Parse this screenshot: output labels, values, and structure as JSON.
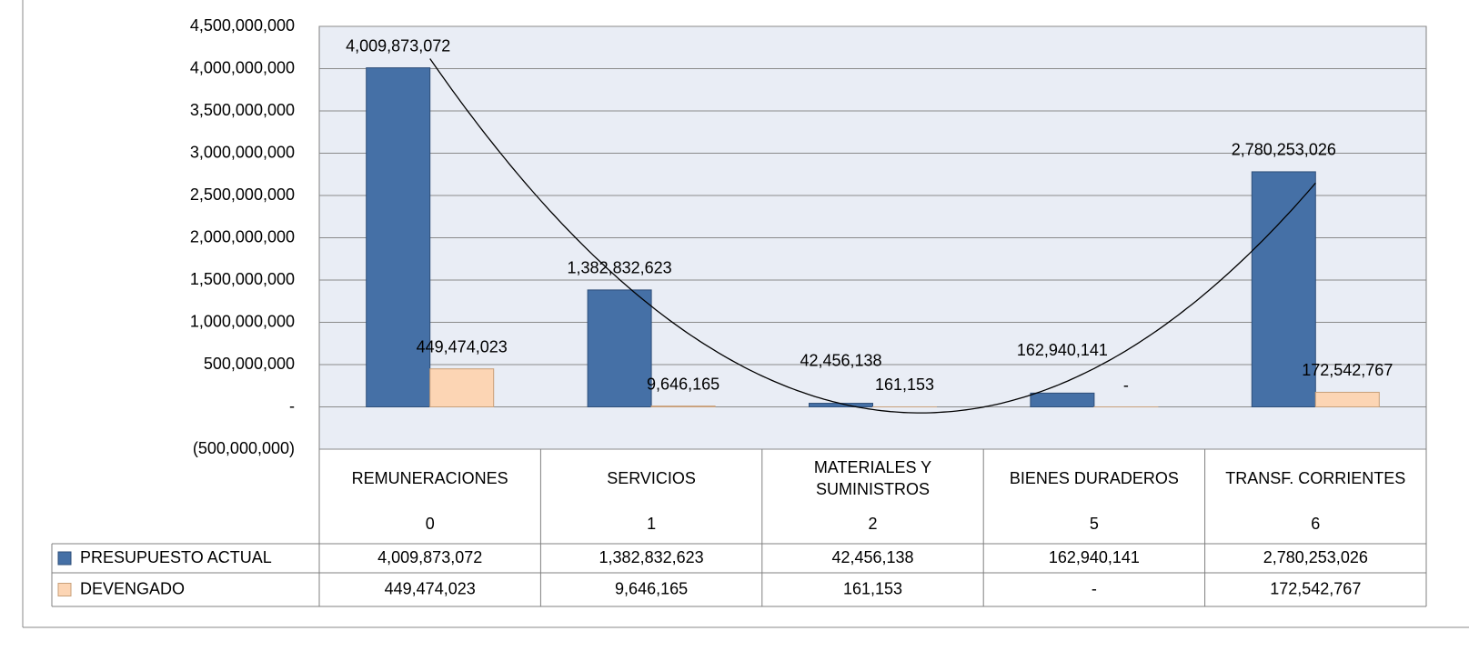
{
  "chart_data": {
    "type": "bar",
    "categories": [
      "REMUNERACIONES",
      "SERVICIOS",
      "MATERIALES Y SUMINISTROS",
      "BIENES DURADEROS",
      "TRANSF. CORRIENTES"
    ],
    "category_codes": [
      "0",
      "1",
      "2",
      "5",
      "6"
    ],
    "series": [
      {
        "name": "PRESUPUESTO ACTUAL",
        "color": "#4570a6",
        "values": [
          4009873072,
          1382832623,
          42456138,
          162940141,
          2780253026
        ],
        "value_labels": [
          "4,009,873,072",
          "1,382,832,623",
          "42,456,138",
          "162,940,141",
          "2,780,253,026"
        ]
      },
      {
        "name": "DEVENGADO",
        "color": "#fcd5b4",
        "values": [
          449474023,
          9646165,
          161153,
          0,
          172542767
        ],
        "value_labels": [
          "449,474,023",
          "9,646,165",
          "161,153",
          "-",
          "172,542,767"
        ]
      }
    ],
    "ylim": [
      -500000000,
      4500000000
    ],
    "yticks": [
      {
        "value": -500000000,
        "label": "(500,000,000)"
      },
      {
        "value": 0,
        "label": "-"
      },
      {
        "value": 500000000,
        "label": "500,000,000"
      },
      {
        "value": 1000000000,
        "label": "1,000,000,000"
      },
      {
        "value": 1500000000,
        "label": "1,500,000,000"
      },
      {
        "value": 2000000000,
        "label": "2,000,000,000"
      },
      {
        "value": 2500000000,
        "label": "2,500,000,000"
      },
      {
        "value": 3000000000,
        "label": "3,000,000,000"
      },
      {
        "value": 3500000000,
        "label": "3,500,000,000"
      },
      {
        "value": 4000000000,
        "label": "4,000,000,000"
      },
      {
        "value": 4500000000,
        "label": "4,500,000,000"
      }
    ],
    "grid": true,
    "trendline": {
      "type": "polynomial",
      "order": 2,
      "series": 0
    }
  }
}
